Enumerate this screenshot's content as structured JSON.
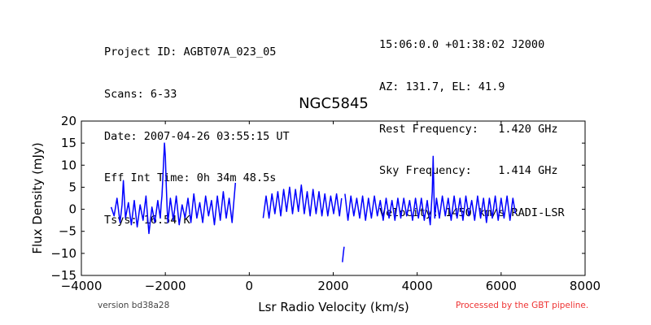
{
  "header_left": [
    "Project ID: AGBT07A_023_05",
    "Scans: 6-33",
    "Date: 2007-04-26 03:55:15 UT",
    "Eff Int Time: 0h 34m 48.5s",
    "Tsys: 16.54 K"
  ],
  "header_right": [
    "15:06:0.0 +01:38:02 J2000",
    "AZ: 131.7, EL: 41.9",
    "Rest Frequency:   1.420 GHz",
    "Sky Frequency:    1.414 GHz",
    "Velocity: 1450 km/s RADI-LSR"
  ],
  "footer": {
    "version": "version bd38a28",
    "processed": "Processed by the GBT pipeline."
  },
  "colors": {
    "series": "#0000ff",
    "processed_text": "#ee3333",
    "version_text": "#444444"
  },
  "chart_data": {
    "type": "line",
    "title": "NGC5845",
    "xlabel": "Lsr Radio Velocity (km/s)",
    "ylabel": "Flux Density (mJy)",
    "xlim": [
      -4000,
      8000
    ],
    "ylim": [
      -15,
      20
    ],
    "xticks": [
      -4000,
      -2000,
      0,
      2000,
      4000,
      6000,
      8000
    ],
    "yticks": [
      -15,
      -10,
      -5,
      0,
      5,
      10,
      15,
      20
    ],
    "xtick_labels": [
      "−4000",
      "−2000",
      "0",
      "2000",
      "4000",
      "6000",
      "8000"
    ],
    "ytick_labels": [
      "−15",
      "−10",
      "−5",
      "0",
      "5",
      "10",
      "15",
      "20"
    ],
    "grid": false,
    "series": [
      {
        "segments": [
          {
            "x": [
              -3290,
              -3220,
              -3150,
              -3080,
              -3030,
              -3000,
              -2950,
              -2880,
              -2810,
              -2740,
              -2670,
              -2600,
              -2530,
              -2460,
              -2390,
              -2320,
              -2250,
              -2180,
              -2120,
              -2100,
              -2080,
              -2060,
              -2040,
              -2020,
              -2000,
              -1980,
              -1960,
              -1940,
              -1880,
              -1810,
              -1740,
              -1670,
              -1600,
              -1530,
              -1460,
              -1390,
              -1320,
              -1250,
              -1180,
              -1110,
              -1040,
              -970,
              -900,
              -830,
              -760,
              -690,
              -620,
              -550,
              -480,
              -410,
              -330
            ],
            "y": [
              0.5,
              -1.5,
              2.5,
              -3,
              1,
              6.5,
              -2,
              1.5,
              -3.5,
              2,
              -4,
              1,
              -2.5,
              3,
              -5.5,
              0.5,
              -3,
              2,
              -2,
              1,
              3,
              7,
              11,
              15,
              12,
              6,
              1,
              -3,
              2.5,
              -2.5,
              3,
              -3.5,
              1,
              -2,
              2.5,
              -3,
              3.5,
              -2,
              1.5,
              -3,
              3,
              -1.5,
              2,
              -3.5,
              3,
              -2.5,
              4,
              -2,
              2.5,
              -3,
              6
            ]
          },
          {
            "x": [
              330,
              400,
              470,
              540,
              610,
              680,
              750,
              820,
              890,
              960,
              1030,
              1100,
              1170,
              1240,
              1310,
              1380,
              1450,
              1520,
              1590,
              1660,
              1730,
              1800,
              1870,
              1940,
              2010,
              2080,
              2150,
              2200
            ],
            "y": [
              -2,
              3,
              -2,
              3.5,
              -1,
              4,
              -1.5,
              4.5,
              -0.5,
              5,
              -1,
              4.5,
              -0.5,
              5.5,
              -1,
              4,
              -1.5,
              4.5,
              -1,
              4,
              -1.5,
              3.5,
              -1.5,
              3,
              -1,
              3.5,
              -1.5,
              2.5
            ]
          },
          {
            "x": [
              2220,
              2240,
              2260
            ],
            "y": [
              -12,
              -10,
              -8.5
            ]
          },
          {
            "x": [
              2280,
              2350,
              2420,
              2490,
              2560,
              2630,
              2700,
              2770,
              2840,
              2910,
              2980,
              3050,
              3120,
              3190,
              3260,
              3330,
              3400,
              3470,
              3540,
              3610,
              3680,
              3750,
              3820,
              3890,
              3960,
              4030,
              4100,
              4170,
              4240,
              4310,
              4360,
              4380,
              4400,
              4420,
              4460,
              4530,
              4600,
              4670,
              4740,
              4810,
              4880,
              4950,
              5020,
              5090,
              5160,
              5230,
              5300,
              5370,
              5440,
              5510,
              5580,
              5650,
              5720,
              5790,
              5860,
              5930,
              6000,
              6070,
              6140,
              6210,
              6280,
              6340
            ],
            "y": [
              3.5,
              -2.5,
              3,
              -1.5,
              2.5,
              -2,
              3,
              -2.5,
              2.5,
              -2,
              3,
              -1.5,
              2,
              -2.5,
              2.5,
              -2,
              2,
              -2.5,
              2.5,
              -2,
              2.5,
              -1.5,
              2,
              -2.5,
              2.5,
              -2,
              2.5,
              -2.5,
              2,
              -3.5,
              4,
              12,
              3,
              -2,
              2.5,
              -2,
              3,
              -1.5,
              2.5,
              -2.5,
              3,
              -2,
              2.5,
              -2.5,
              3,
              -1.5,
              2,
              -2.5,
              3,
              -2,
              2.5,
              -3,
              2.5,
              -2,
              3,
              -2.5,
              2.5,
              -2,
              3,
              -2.5,
              2.5,
              -1
            ]
          }
        ]
      }
    ]
  }
}
